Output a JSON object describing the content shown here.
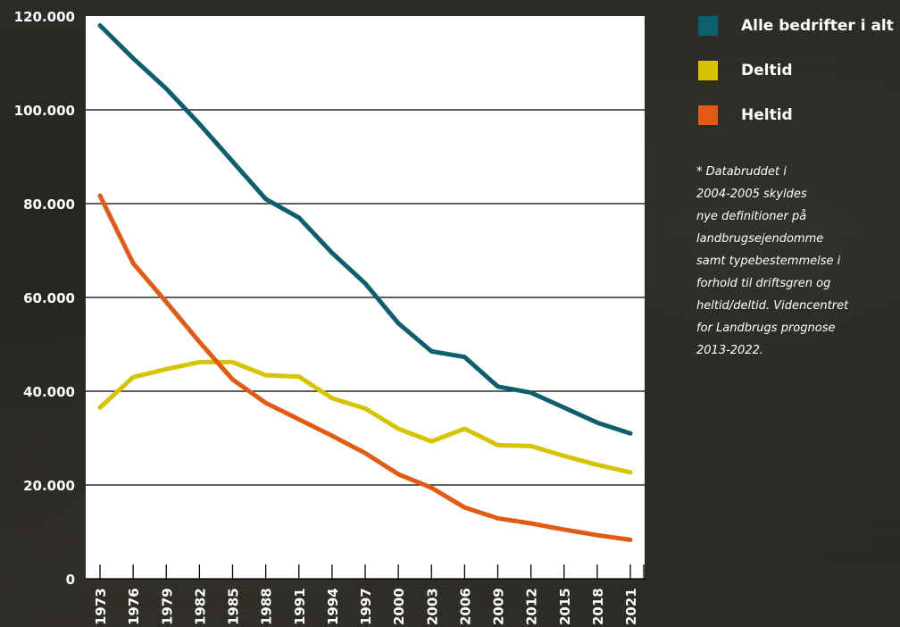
{
  "chart_data": {
    "type": "line",
    "x": [
      "1973",
      "1976",
      "1979",
      "1982",
      "1985",
      "1988",
      "1991",
      "1994",
      "1997",
      "2000",
      "2003",
      "2006",
      "2009",
      "2012",
      "2015",
      "2018",
      "2021"
    ],
    "ylim": [
      0,
      120000
    ],
    "yticks": [
      "0",
      "20.000",
      "40.000",
      "60.000",
      "80.000",
      "100.000",
      "120.000"
    ],
    "ytick_values": [
      0,
      20000,
      40000,
      60000,
      80000,
      100000,
      120000
    ],
    "grid": true,
    "legend_position": "right",
    "series": [
      {
        "name": "Alle bedrifter i alt",
        "color": "#0d5f6e",
        "values": [
          118000,
          111000,
          104500,
          97000,
          89000,
          81000,
          77000,
          69500,
          63000,
          54500,
          48500,
          47300,
          41000,
          39700,
          36500,
          33300,
          31000
        ]
      },
      {
        "name": "Deltid",
        "color": "#d6c400",
        "values": [
          36500,
          43000,
          44700,
          46200,
          46200,
          43400,
          43100,
          38500,
          36300,
          32000,
          29300,
          32000,
          28500,
          28300,
          26200,
          24300,
          22700
        ]
      },
      {
        "name": "Heltid",
        "color": "#e35a14",
        "values": [
          81700,
          67300,
          59000,
          50500,
          42500,
          37500,
          34000,
          30500,
          26800,
          22300,
          19400,
          15200,
          12900,
          11800,
          10500,
          9300,
          8300
        ]
      }
    ]
  },
  "legend": {
    "items": [
      {
        "label": "Alle bedrifter i alt",
        "color": "#0d5f6e"
      },
      {
        "label": "Deltid",
        "color": "#d6c400"
      },
      {
        "label": "Heltid",
        "color": "#e35a14"
      }
    ]
  },
  "note": {
    "lines": [
      "* Databruddet i",
      "2004-2005 skyldes",
      "nye definitioner på",
      "landbrugsejendomme",
      "samt typebestemmelse i",
      "forhold til driftsgren og",
      "heltid/deltid. Videncentret",
      "for Landbrugs prognose",
      "2013-2022."
    ]
  }
}
